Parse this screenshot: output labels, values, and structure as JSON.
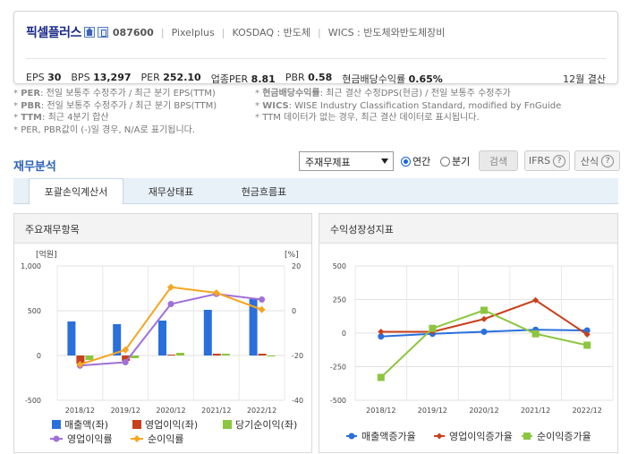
{
  "company": {
    "name": "픽셀플러스",
    "code": "087600",
    "english": "Pixelplus",
    "market": "KOSDAQ : 반도체",
    "wics": "WICS : 반도체와반도체장비",
    "fiscal": "12월 결산"
  },
  "metrics": [
    {
      "label": "EPS",
      "value": "30"
    },
    {
      "label": "BPS",
      "value": "13,297"
    },
    {
      "label": "PER",
      "value": "252.10"
    },
    {
      "label": "업종PER",
      "value": "8.81"
    },
    {
      "label": "PBR",
      "value": "0.58"
    },
    {
      "label": "현금배당수익률",
      "value": "0.65%"
    }
  ],
  "notes_left": [
    {
      "key": "PER",
      "text": ": 전일 보통주 수정주가 / 최근 분기 EPS(TTM)"
    },
    {
      "key": "PBR",
      "text": ": 전일 보통주 수정주가 / 최근 분기 BPS(TTM)"
    },
    {
      "key": "TTM",
      "text": ": 최근 4분기 합산"
    },
    {
      "key": "",
      "text": "PER, PBR값이 (-)일 경우, N/A로 표기됩니다."
    }
  ],
  "notes_right": [
    {
      "key": "현금배당수익률",
      "text": ": 최근 결산 수정DPS(현금) / 전일 보통주 수정주가"
    },
    {
      "key": "WICS",
      "text": ": WISE Industry Classification Standard, modified by FnGuide"
    },
    {
      "key": "",
      "text": "TTM 데이터가 없는 경우, 최근 결산 데이터로 표시됩니다."
    }
  ],
  "section_title": "재무분석",
  "controls": {
    "select_value": "주재무제표",
    "radio_annual": "연간",
    "radio_quarter": "분기",
    "search": "검색",
    "ifrs": "IFRS",
    "formula": "산식",
    "help": "?"
  },
  "tabs": [
    "포괄손익계산서",
    "재무상태표",
    "현금흐름표"
  ],
  "colors": {
    "revenue": "#2a6fdc",
    "op_income": "#c8401c",
    "net_income": "#8cc63f",
    "op_margin": "#a070d8",
    "net_margin": "#f5a623",
    "g_revenue": "#2a6fdc",
    "g_op": "#c8401c",
    "g_net": "#8cc63f"
  },
  "chart_data": [
    {
      "type": "bar",
      "title": "주요재무항목",
      "left_unit": "[억원]",
      "right_unit": "[%]",
      "categories": [
        "2018/12",
        "2019/12",
        "2020/12",
        "2021/12",
        "2022/12"
      ],
      "ylim_left": [
        -500,
        1000
      ],
      "ylim_right": [
        -40,
        20
      ],
      "yticks_left": [
        "1,000",
        "500",
        "0",
        "-500"
      ],
      "yticks_right": [
        "20",
        "0",
        "-20",
        "-40"
      ],
      "series": [
        {
          "name": "매출액(좌)",
          "type": "bar",
          "axis": "left",
          "values": [
            380,
            350,
            390,
            510,
            630
          ]
        },
        {
          "name": "영업이익(좌)",
          "type": "bar",
          "axis": "left",
          "values": [
            -90,
            -60,
            10,
            20,
            20
          ]
        },
        {
          "name": "당기순이익(좌)",
          "type": "bar",
          "axis": "left",
          "values": [
            -50,
            -30,
            30,
            20,
            0
          ]
        },
        {
          "name": "영업이익률",
          "type": "line",
          "axis": "right",
          "values": [
            -24.5,
            -23,
            3,
            7.5,
            5
          ]
        },
        {
          "name": "순이익률",
          "type": "line",
          "axis": "right",
          "values": [
            -24,
            -17.5,
            10.5,
            8,
            0.5
          ]
        }
      ]
    },
    {
      "type": "line",
      "title": "수익성장성지표",
      "categories": [
        "2018/12",
        "2019/12",
        "2020/12",
        "2021/12",
        "2022/12"
      ],
      "ylim": [
        -500,
        500
      ],
      "yticks": [
        "500",
        "250",
        "0",
        "-250",
        "-500"
      ],
      "series": [
        {
          "name": "매출액증가율",
          "values": [
            -25,
            -5,
            10,
            25,
            20
          ]
        },
        {
          "name": "영업이익증가율",
          "values": [
            10,
            10,
            105,
            245,
            -10
          ]
        },
        {
          "name": "순이익증가율",
          "values": [
            -330,
            35,
            170,
            -5,
            -90
          ]
        }
      ]
    }
  ]
}
